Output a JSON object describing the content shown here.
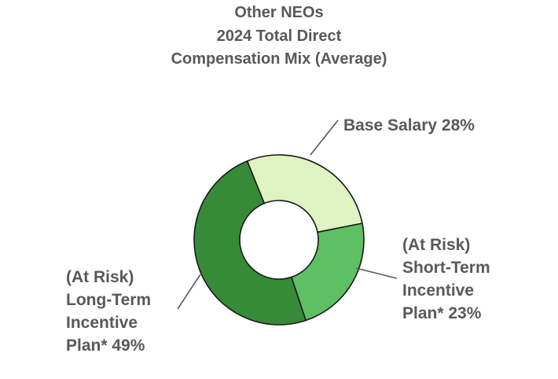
{
  "chart_data": {
    "type": "pie",
    "title": [
      "Other NEOs",
      "2024 Total Direct",
      "Compensation Mix (Average)"
    ],
    "slices": [
      {
        "label": [
          "Base Salary 28%"
        ],
        "value": 28,
        "color": "#dff2c2"
      },
      {
        "label": [
          "(At Risk)",
          "Short-Term",
          "Incentive",
          "Plan* 23%"
        ],
        "value": 23,
        "color": "#5fbf63"
      },
      {
        "label": [
          "(At Risk)",
          "Long-Term",
          "Incentive",
          "Plan* 49%"
        ],
        "value": 49,
        "color": "#368a38"
      }
    ],
    "donut": true,
    "legend": "none"
  }
}
